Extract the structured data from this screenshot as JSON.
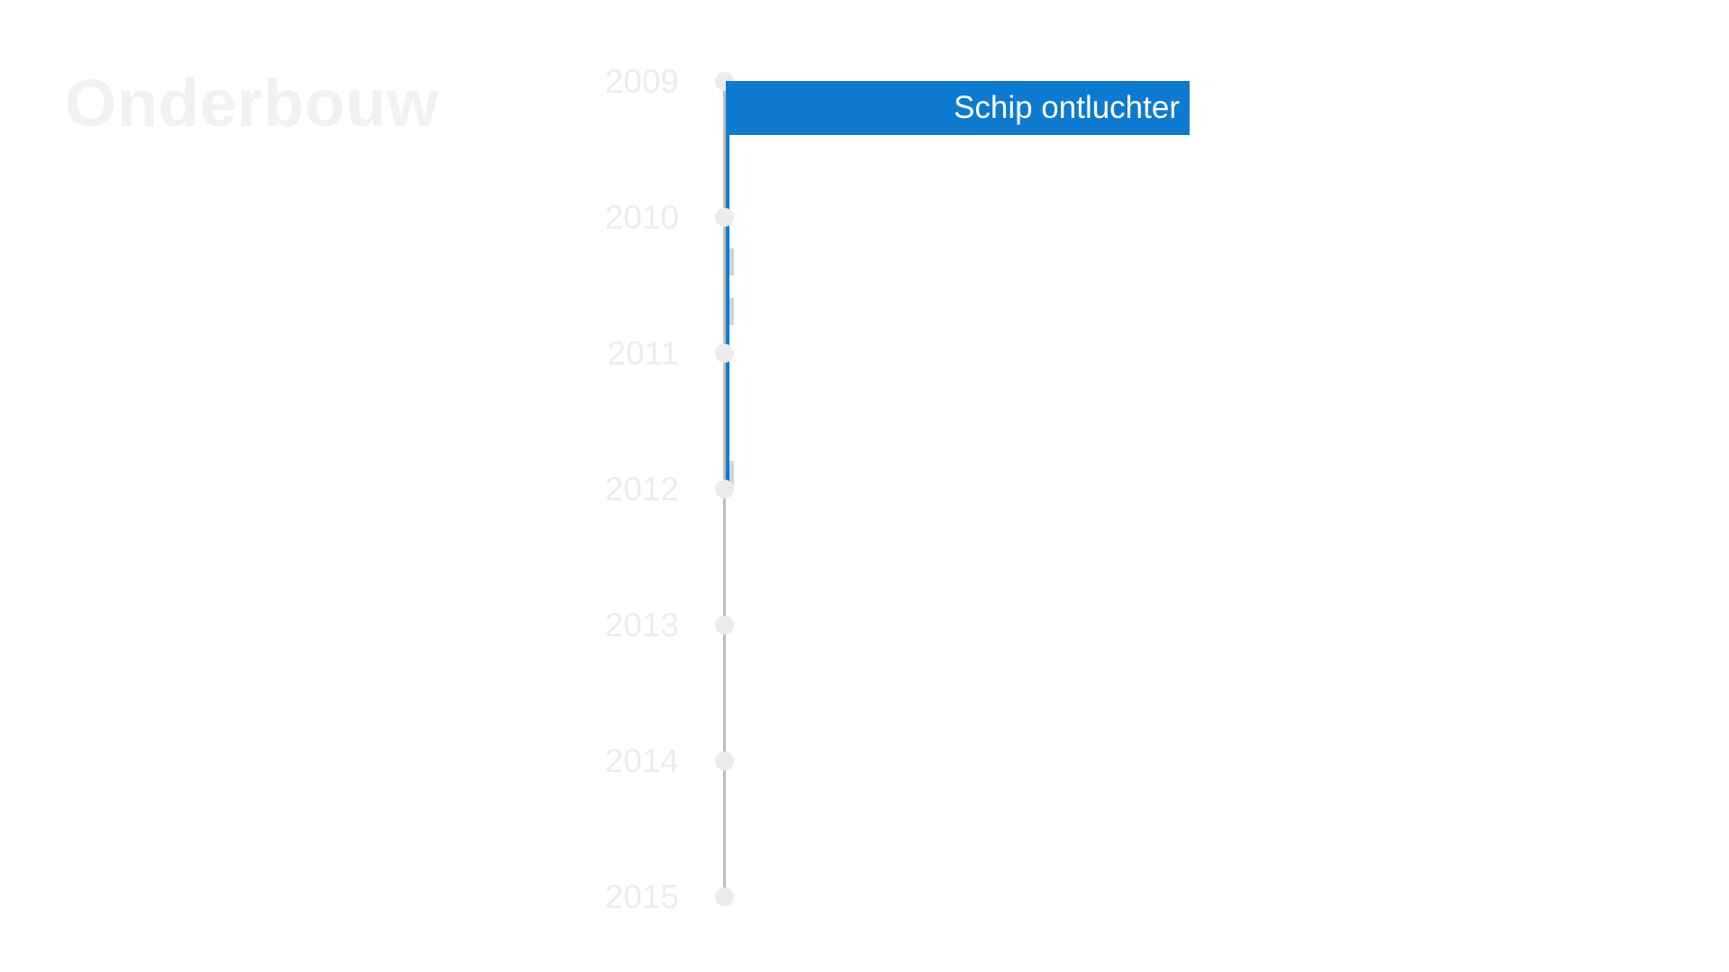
{
  "title": "Onderbouw",
  "timeline": {
    "years": [
      "2009",
      "2010",
      "2011",
      "2012",
      "2013",
      "2014",
      "2015"
    ],
    "event": {
      "label": "Schip ontluchter",
      "start_year": 2009,
      "end_year": 2012
    }
  },
  "colors": {
    "event": "#0e7acf",
    "axis": "#bdbdbd",
    "faded_text": "#ececec"
  }
}
